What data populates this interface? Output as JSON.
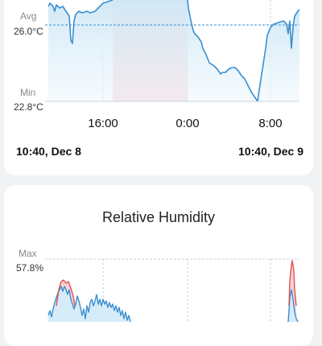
{
  "temperature_card": {
    "avg_label": "Avg",
    "avg_value": "26.0°C",
    "min_label": "Min",
    "min_value": "22.8°C",
    "x_ticks": [
      "16:00",
      "0:00",
      "8:00"
    ],
    "range_start": "10:40, Dec 8",
    "range_end": "10:40, Dec 9",
    "colors": {
      "line": "#3a8fd0",
      "fill": "#d6ecf8",
      "highlight": "#f8d4d6",
      "avg_line": "#3a8fd0"
    }
  },
  "humidity_card": {
    "title": "Relative Humidity",
    "max_label": "Max",
    "max_value": "57.8%",
    "colors": {
      "line": "#3a8fd0",
      "peak": "#e05050",
      "peak_fill": "#f8d4d6"
    }
  }
}
